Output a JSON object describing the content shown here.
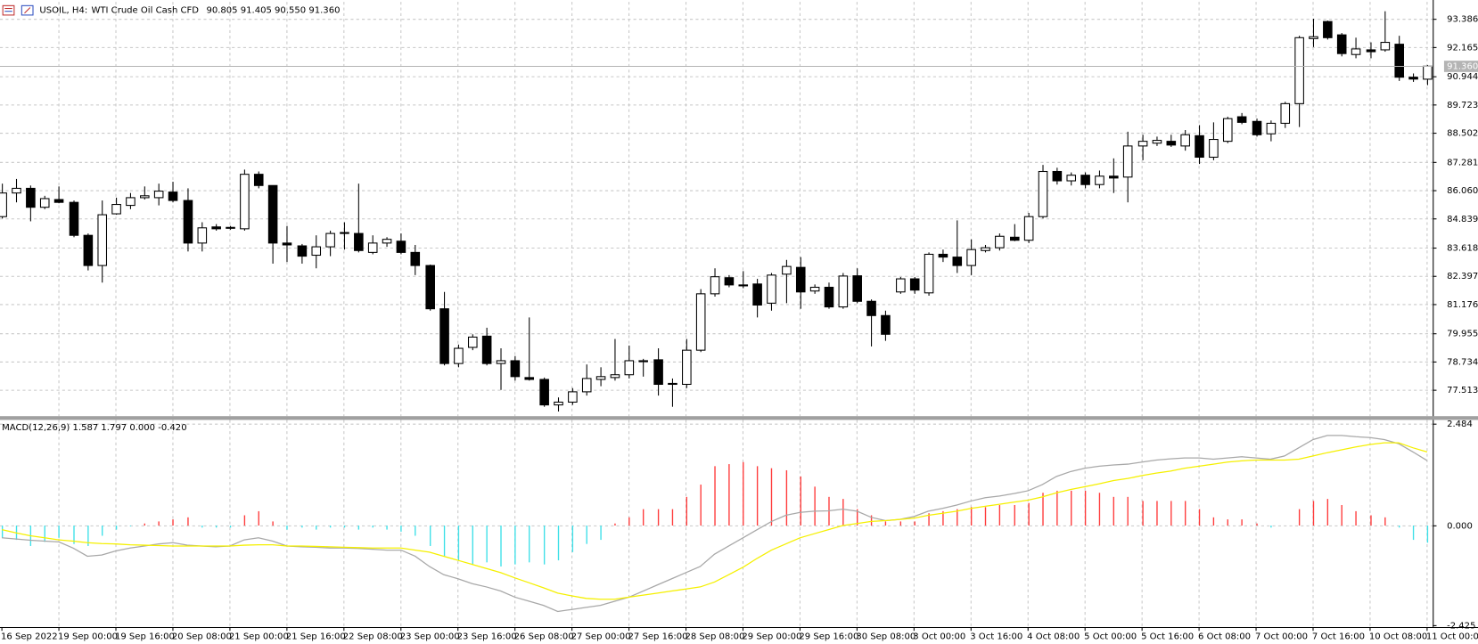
{
  "chart_data": [
    {
      "type": "candlestick",
      "title": "USOIL, H4:",
      "subtitle": "WTI Crude Oil Cash CFD",
      "ohlc_label": "90.805 91.405 90.550 91.360",
      "open": [
        84.93,
        85.94,
        86.14,
        85.33,
        85.66,
        85.54,
        84.13,
        82.84,
        85.05,
        85.41,
        85.74,
        85.74,
        85.98,
        85.62,
        83.8,
        84.49,
        84.45,
        84.41,
        86.74,
        86.26,
        83.8,
        83.68,
        83.28,
        83.64,
        84.25,
        84.21,
        83.4,
        83.8,
        83.88,
        83.4,
        82.84,
        80.99,
        78.65,
        79.34,
        79.82,
        78.65,
        78.77,
        78.05,
        77.97,
        76.88,
        77.0,
        77.44,
        77.97,
        78.05,
        78.17,
        78.77,
        78.81,
        77.8,
        77.76,
        79.22,
        81.63,
        82.32,
        82.01,
        82.05,
        81.23,
        82.47,
        82.76,
        81.75,
        81.91,
        81.07,
        82.4,
        81.31,
        80.7,
        81.71,
        82.27,
        81.67,
        83.32,
        83.2,
        82.84,
        83.48,
        83.6,
        84.05,
        83.92,
        84.93,
        86.86,
        86.46,
        86.7,
        86.3,
        86.66,
        86.62,
        87.95,
        88.07,
        88.15,
        87.95,
        88.39,
        87.47,
        88.15,
        89.2,
        89.0,
        88.47,
        88.92,
        89.76,
        92.54,
        93.27,
        92.7,
        91.86,
        92.06,
        92.06,
        92.3,
        90.89,
        90.805
      ],
      "high": [
        86.34,
        86.54,
        86.26,
        85.82,
        86.22,
        85.62,
        84.21,
        85.62,
        85.74,
        85.94,
        86.22,
        86.34,
        86.42,
        86.14,
        84.69,
        84.61,
        84.53,
        86.94,
        86.86,
        86.26,
        84.53,
        83.76,
        84.13,
        84.33,
        84.69,
        86.34,
        84.13,
        84.05,
        84.21,
        83.72,
        82.88,
        81.71,
        79.46,
        79.9,
        80.18,
        79.3,
        78.97,
        80.62,
        78.05,
        77.2,
        77.6,
        78.61,
        78.49,
        79.7,
        79.42,
        78.85,
        79.3,
        78.01,
        79.7,
        81.83,
        82.72,
        82.43,
        82.6,
        82.27,
        82.52,
        83.08,
        83.2,
        82.03,
        82.11,
        82.52,
        82.72,
        81.39,
        80.91,
        82.35,
        82.35,
        83.4,
        83.52,
        84.77,
        83.96,
        83.72,
        84.21,
        84.61,
        85.09,
        87.14,
        87.02,
        86.82,
        86.82,
        86.9,
        87.42,
        88.56,
        88.43,
        88.35,
        88.43,
        88.63,
        88.84,
        88.96,
        89.2,
        89.36,
        89.12,
        89.04,
        89.84,
        92.66,
        93.39,
        93.31,
        92.78,
        92.58,
        92.38,
        93.71,
        92.66,
        91.05,
        91.405
      ],
      "low": [
        84.85,
        85.54,
        84.73,
        85.25,
        85.5,
        84.05,
        82.63,
        82.11,
        85.01,
        85.25,
        85.66,
        85.41,
        85.54,
        83.44,
        83.44,
        84.33,
        84.37,
        84.33,
        86.14,
        82.92,
        82.99,
        82.92,
        82.72,
        83.24,
        83.52,
        83.4,
        83.32,
        83.64,
        83.32,
        82.43,
        80.91,
        78.57,
        78.49,
        79.22,
        78.57,
        77.52,
        77.92,
        77.92,
        76.8,
        76.6,
        76.88,
        77.28,
        77.68,
        77.92,
        78.01,
        78.09,
        77.28,
        76.8,
        77.6,
        79.14,
        81.51,
        81.91,
        81.87,
        80.62,
        80.91,
        81.23,
        80.99,
        81.63,
        80.99,
        80.99,
        81.23,
        79.38,
        79.62,
        81.63,
        81.63,
        81.55,
        82.99,
        82.52,
        82.43,
        83.4,
        83.48,
        83.88,
        83.8,
        84.85,
        86.3,
        86.26,
        86.14,
        86.14,
        85.94,
        85.54,
        87.34,
        87.95,
        87.91,
        87.75,
        87.18,
        87.34,
        88.07,
        88.88,
        88.35,
        88.15,
        88.72,
        88.76,
        92.18,
        92.5,
        91.78,
        91.7,
        91.7,
        91.98,
        90.73,
        90.69,
        90.55
      ],
      "close": [
        85.94,
        86.14,
        85.33,
        85.7,
        85.54,
        84.13,
        82.84,
        85.01,
        85.45,
        85.74,
        85.82,
        86.02,
        85.62,
        83.8,
        84.45,
        84.41,
        84.47,
        86.74,
        86.26,
        83.8,
        83.72,
        83.24,
        83.64,
        84.21,
        84.21,
        83.48,
        83.8,
        83.96,
        83.4,
        82.84,
        80.99,
        78.65,
        79.3,
        79.78,
        78.65,
        78.77,
        78.09,
        77.97,
        76.88,
        77.0,
        77.44,
        78.01,
        78.09,
        78.17,
        78.77,
        78.73,
        77.76,
        77.76,
        79.22,
        81.63,
        82.36,
        82.01,
        81.97,
        81.15,
        82.43,
        82.8,
        81.71,
        81.91,
        81.07,
        82.39,
        81.31,
        80.7,
        79.9,
        82.27,
        81.79,
        83.32,
        83.2,
        82.84,
        83.52,
        83.6,
        84.09,
        83.92,
        84.93,
        86.86,
        86.46,
        86.7,
        86.3,
        86.66,
        86.58,
        87.95,
        88.15,
        88.19,
        87.99,
        88.43,
        87.47,
        88.23,
        89.12,
        88.96,
        88.43,
        88.92,
        89.76,
        92.58,
        92.62,
        92.58,
        91.9,
        92.1,
        91.98,
        92.38,
        90.89,
        90.81,
        91.36
      ],
      "up_color": "#ffffff",
      "down_color": "#000000",
      "last_price": {
        "value": 91.36,
        "label": "91.360"
      },
      "ylim": [
        76.4,
        94.11
      ],
      "yticks": [
        93.386,
        92.165,
        90.944,
        89.723,
        88.502,
        87.281,
        {
          "value": 86.06,
          "label": "86.060"
        },
        84.839,
        83.618,
        82.397,
        81.176,
        79.955,
        78.734,
        77.513
      ],
      "grid": true
    },
    {
      "type": "combo",
      "title": "MACD(12,26,9) 1.587 1.797 0.000 -0.420",
      "categories": [
        "16 Sep 2022",
        null,
        null,
        null,
        "19 Sep 00:00",
        null,
        null,
        null,
        "19 Sep 16:00",
        null,
        null,
        null,
        "20 Sep 08:00",
        null,
        null,
        null,
        "21 Sep 00:00",
        null,
        null,
        null,
        "21 Sep 16:00",
        null,
        null,
        null,
        "22 Sep 08:00",
        null,
        null,
        null,
        "23 Sep 00:00",
        null,
        null,
        null,
        "23 Sep 16:00",
        null,
        null,
        null,
        "26 Sep 08:00",
        null,
        null,
        null,
        "27 Sep 00:00",
        null,
        null,
        null,
        "27 Sep 16:00",
        null,
        null,
        null,
        "28 Sep 08:00",
        null,
        null,
        null,
        "29 Sep 00:00",
        null,
        null,
        null,
        "29 Sep 16:00",
        null,
        null,
        null,
        "30 Sep 08:00",
        null,
        null,
        null,
        "3 Oct 00:00",
        null,
        null,
        null,
        "3 Oct 16:00",
        null,
        null,
        null,
        "4 Oct 08:00",
        null,
        null,
        null,
        "5 Oct 00:00",
        null,
        null,
        null,
        "5 Oct 16:00",
        null,
        null,
        null,
        "6 Oct 08:00",
        null,
        null,
        null,
        "7 Oct 00:00",
        null,
        null,
        null,
        "7 Oct 16:00",
        null,
        null,
        null,
        "10 Oct 08:00",
        null,
        null,
        null,
        "11 Oct 00:00"
      ],
      "histogram": {
        "color": "#ff3b3b",
        "negative_color": "#3fe0e8",
        "values": [
          -0.3,
          -0.35,
          -0.5,
          -0.4,
          -0.3,
          -0.45,
          -0.5,
          -0.25,
          -0.1,
          -0.02,
          0.05,
          0.1,
          0.15,
          0.2,
          -0.05,
          -0.05,
          -0.05,
          0.25,
          0.35,
          0.1,
          -0.1,
          -0.05,
          -0.1,
          -0.05,
          -0.05,
          -0.1,
          -0.05,
          -0.1,
          -0.15,
          -0.25,
          -0.5,
          -0.75,
          -0.85,
          -0.95,
          -0.9,
          -1.0,
          -0.95,
          -0.9,
          -0.95,
          -0.85,
          -0.65,
          -0.45,
          -0.35,
          0.05,
          0.2,
          0.4,
          0.4,
          0.4,
          0.7,
          1.0,
          1.45,
          1.5,
          1.55,
          1.45,
          1.4,
          1.35,
          1.2,
          0.95,
          0.7,
          0.65,
          0.4,
          0.25,
          0.1,
          0.1,
          0.1,
          0.3,
          0.35,
          0.4,
          0.45,
          0.45,
          0.5,
          0.5,
          0.55,
          0.8,
          0.85,
          0.85,
          0.85,
          0.8,
          0.7,
          0.7,
          0.6,
          0.6,
          0.6,
          0.6,
          0.4,
          0.2,
          0.15,
          0.15,
          0.05,
          -0.05,
          0.0,
          0.4,
          0.6,
          0.65,
          0.5,
          0.35,
          0.25,
          0.2,
          -0.05,
          -0.35,
          -0.42
        ]
      },
      "series": [
        {
          "color": "#a8a8a8",
          "values": [
            -0.3,
            -0.33,
            -0.36,
            -0.38,
            -0.4,
            -0.55,
            -0.75,
            -0.72,
            -0.62,
            -0.55,
            -0.5,
            -0.45,
            -0.42,
            -0.48,
            -0.5,
            -0.52,
            -0.5,
            -0.35,
            -0.3,
            -0.38,
            -0.5,
            -0.52,
            -0.53,
            -0.55,
            -0.55,
            -0.56,
            -0.58,
            -0.6,
            -0.6,
            -0.75,
            -1.0,
            -1.2,
            -1.3,
            -1.42,
            -1.5,
            -1.6,
            -1.75,
            -1.85,
            -1.95,
            -2.1,
            -2.05,
            -2.0,
            -1.95,
            -1.85,
            -1.75,
            -1.6,
            -1.45,
            -1.3,
            -1.15,
            -1.0,
            -0.7,
            -0.5,
            -0.3,
            -0.1,
            0.1,
            0.25,
            0.32,
            0.35,
            0.36,
            0.4,
            0.35,
            0.2,
            0.12,
            0.15,
            0.22,
            0.35,
            0.42,
            0.5,
            0.6,
            0.68,
            0.72,
            0.78,
            0.85,
            1.0,
            1.2,
            1.32,
            1.4,
            1.45,
            1.48,
            1.5,
            1.55,
            1.6,
            1.63,
            1.65,
            1.65,
            1.62,
            1.65,
            1.68,
            1.65,
            1.62,
            1.7,
            1.9,
            2.1,
            2.2,
            2.2,
            2.17,
            2.15,
            2.1,
            2.0,
            1.8,
            1.587
          ]
        },
        {
          "color": "#f5f000",
          "values": [
            -0.1,
            -0.18,
            -0.25,
            -0.3,
            -0.35,
            -0.38,
            -0.42,
            -0.44,
            -0.45,
            -0.47,
            -0.48,
            -0.49,
            -0.5,
            -0.5,
            -0.5,
            -0.5,
            -0.5,
            -0.48,
            -0.47,
            -0.47,
            -0.5,
            -0.5,
            -0.51,
            -0.52,
            -0.53,
            -0.54,
            -0.55,
            -0.55,
            -0.55,
            -0.6,
            -0.65,
            -0.75,
            -0.85,
            -0.95,
            -1.05,
            -1.15,
            -1.28,
            -1.4,
            -1.52,
            -1.65,
            -1.72,
            -1.78,
            -1.8,
            -1.8,
            -1.75,
            -1.7,
            -1.65,
            -1.6,
            -1.55,
            -1.5,
            -1.38,
            -1.2,
            -1.02,
            -0.8,
            -0.6,
            -0.45,
            -0.3,
            -0.2,
            -0.1,
            0.0,
            0.05,
            0.1,
            0.12,
            0.15,
            0.18,
            0.25,
            0.3,
            0.35,
            0.42,
            0.47,
            0.52,
            0.57,
            0.62,
            0.7,
            0.8,
            0.88,
            0.95,
            1.02,
            1.1,
            1.15,
            1.22,
            1.28,
            1.33,
            1.4,
            1.45,
            1.5,
            1.55,
            1.58,
            1.6,
            1.6,
            1.6,
            1.62,
            1.7,
            1.78,
            1.85,
            1.92,
            1.98,
            2.02,
            2.02,
            1.9,
            1.797
          ]
        }
      ],
      "ylim": [
        -2.48,
        2.58
      ],
      "yticks": [
        2.484,
        {
          "value": 0,
          "label": "0.000"
        },
        -2.425
      ],
      "grid": true
    }
  ]
}
